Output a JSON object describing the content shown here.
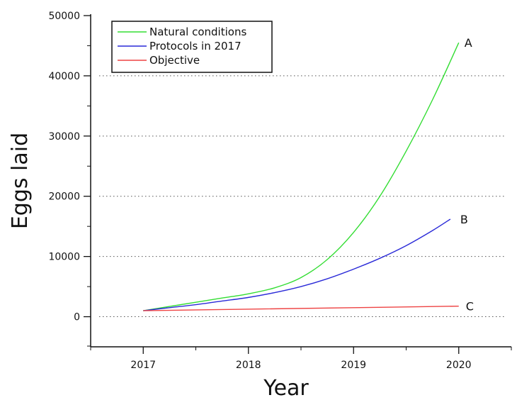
{
  "chart_data": {
    "type": "line",
    "title": "",
    "xlabel": "Year",
    "ylabel": "Eggs laid",
    "xlim": [
      2016.5,
      2020.5
    ],
    "ylim": [
      -5000,
      50000
    ],
    "x_ticks": [
      "2017",
      "2018",
      "2019",
      "2020"
    ],
    "y_ticks": [
      "0",
      "10000",
      "20000",
      "30000",
      "40000",
      "50000"
    ],
    "grid": "horizontal-dotted",
    "legend_position": "top-left",
    "series": [
      {
        "name": "Natural conditions",
        "color": "#33dd33",
        "end_label": "A",
        "x": [
          2017.0,
          2017.25,
          2017.5,
          2017.75,
          2018.0,
          2018.25,
          2018.5,
          2018.75,
          2019.0,
          2019.25,
          2019.5,
          2019.75,
          2020.0
        ],
        "y": [
          1000,
          1700,
          2400,
          3100,
          3800,
          4800,
          6500,
          9500,
          14000,
          20000,
          27500,
          36000,
          45500
        ]
      },
      {
        "name": "Protocols in 2017",
        "color": "#2a2ad8",
        "end_label": "B",
        "x": [
          2017.0,
          2017.25,
          2017.5,
          2017.75,
          2018.0,
          2018.25,
          2018.5,
          2018.75,
          2019.0,
          2019.25,
          2019.5,
          2019.75,
          2019.92
        ],
        "y": [
          1000,
          1500,
          2000,
          2600,
          3200,
          4000,
          5000,
          6300,
          7900,
          9700,
          11800,
          14300,
          16200
        ]
      },
      {
        "name": "Objective",
        "color": "#ee4444",
        "end_label": "C",
        "x": [
          2017.0,
          2018.0,
          2019.0,
          2020.0
        ],
        "y": [
          1000,
          1250,
          1500,
          1750
        ]
      }
    ]
  }
}
